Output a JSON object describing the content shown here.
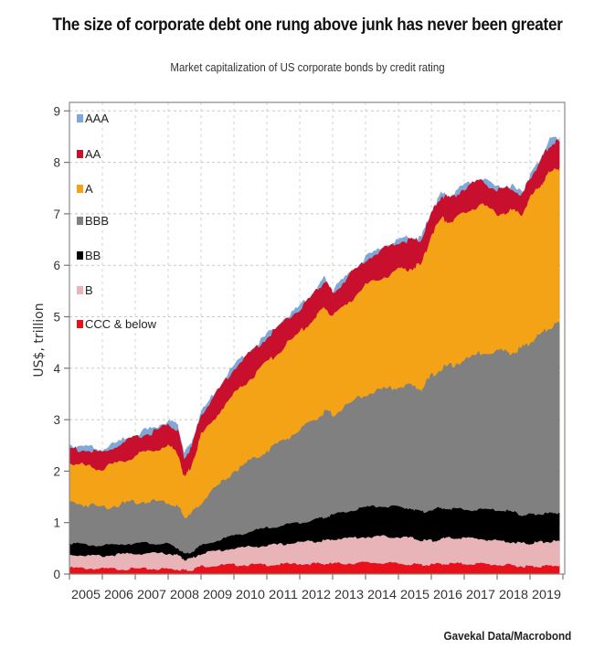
{
  "title": "The size of corporate debt one rung above junk has never been greater",
  "subtitle": "Market capitalization of US corporate bonds by credit rating",
  "source": "Gavekal Data/Macrobond",
  "chart_data": {
    "type": "area",
    "stacked": true,
    "title": "The size of corporate debt one rung above junk has never been greater",
    "subtitle": "Market capitalization of US corporate bonds by credit rating",
    "xlabel": "",
    "ylabel": "US$, trillion",
    "xlim": [
      2005,
      2020
    ],
    "ylim": [
      0,
      9
    ],
    "yticks": [
      0,
      1,
      2,
      3,
      4,
      5,
      6,
      7,
      8,
      9
    ],
    "xtick_labels": [
      "2005",
      "2006",
      "2007",
      "2008",
      "2009",
      "2010",
      "2011",
      "2012",
      "2013",
      "2014",
      "2015",
      "2016",
      "2017",
      "2018",
      "2019"
    ],
    "grid": true,
    "legend_position": "top-left",
    "x": [
      2005.0,
      2005.5,
      2006.0,
      2006.5,
      2007.0,
      2007.5,
      2008.0,
      2008.3,
      2008.5,
      2008.7,
      2009.0,
      2009.5,
      2010.0,
      2010.5,
      2011.0,
      2011.5,
      2012.0,
      2012.5,
      2012.75,
      2013.0,
      2013.5,
      2014.0,
      2014.5,
      2015.0,
      2015.4,
      2015.7,
      2016.0,
      2016.3,
      2016.6,
      2017.0,
      2017.5,
      2018.0,
      2018.4,
      2018.75,
      2019.0,
      2019.3,
      2019.6,
      2019.9
    ],
    "cumulative_tops": true,
    "series": [
      {
        "name": "CCC & below",
        "color": "#e8101a",
        "values": [
          0.12,
          0.11,
          0.1,
          0.1,
          0.1,
          0.1,
          0.1,
          0.09,
          0.08,
          0.08,
          0.15,
          0.17,
          0.18,
          0.18,
          0.18,
          0.19,
          0.2,
          0.2,
          0.2,
          0.2,
          0.21,
          0.22,
          0.22,
          0.2,
          0.19,
          0.18,
          0.18,
          0.2,
          0.2,
          0.2,
          0.2,
          0.18,
          0.17,
          0.15,
          0.15,
          0.15,
          0.16,
          0.17
        ]
      },
      {
        "name": "B",
        "color": "#e8b4b8",
        "values": [
          0.38,
          0.36,
          0.35,
          0.38,
          0.4,
          0.4,
          0.4,
          0.36,
          0.28,
          0.3,
          0.4,
          0.45,
          0.5,
          0.53,
          0.55,
          0.58,
          0.62,
          0.64,
          0.65,
          0.68,
          0.7,
          0.72,
          0.73,
          0.72,
          0.7,
          0.65,
          0.65,
          0.68,
          0.7,
          0.7,
          0.68,
          0.65,
          0.63,
          0.6,
          0.6,
          0.62,
          0.63,
          0.64
        ]
      },
      {
        "name": "BB",
        "color": "#000000",
        "values": [
          0.6,
          0.57,
          0.55,
          0.58,
          0.6,
          0.6,
          0.58,
          0.5,
          0.38,
          0.42,
          0.55,
          0.65,
          0.75,
          0.82,
          0.9,
          0.95,
          1.0,
          1.07,
          1.1,
          1.15,
          1.22,
          1.3,
          1.32,
          1.3,
          1.28,
          1.2,
          1.25,
          1.28,
          1.27,
          1.25,
          1.25,
          1.25,
          1.22,
          1.15,
          1.15,
          1.17,
          1.18,
          1.19
        ]
      },
      {
        "name": "BBB",
        "color": "#808080",
        "values": [
          1.4,
          1.35,
          1.3,
          1.35,
          1.4,
          1.42,
          1.4,
          1.3,
          1.1,
          1.15,
          1.4,
          1.7,
          2.0,
          2.2,
          2.4,
          2.6,
          2.8,
          3.0,
          3.15,
          3.1,
          3.3,
          3.5,
          3.58,
          3.65,
          3.65,
          3.6,
          3.85,
          4.0,
          4.05,
          4.15,
          4.3,
          4.35,
          4.3,
          4.4,
          4.5,
          4.65,
          4.8,
          4.88
        ]
      },
      {
        "name": "A",
        "color": "#f5a316",
        "values": [
          2.15,
          2.1,
          2.05,
          2.15,
          2.3,
          2.4,
          2.5,
          2.35,
          1.85,
          2.1,
          2.7,
          3.1,
          3.5,
          3.8,
          4.1,
          4.4,
          4.7,
          5.0,
          5.2,
          5.0,
          5.3,
          5.6,
          5.75,
          5.9,
          5.95,
          6.0,
          6.6,
          6.9,
          6.85,
          7.0,
          7.2,
          7.0,
          7.05,
          7.0,
          7.3,
          7.55,
          7.8,
          7.9
        ]
      },
      {
        "name": "AA",
        "color": "#c8102e",
        "values": [
          2.45,
          2.4,
          2.35,
          2.5,
          2.65,
          2.75,
          2.9,
          2.8,
          2.25,
          2.45,
          3.1,
          3.55,
          4.0,
          4.3,
          4.6,
          4.9,
          5.15,
          5.5,
          5.7,
          5.45,
          5.8,
          6.1,
          6.3,
          6.45,
          6.5,
          6.5,
          7.0,
          7.35,
          7.3,
          7.5,
          7.65,
          7.45,
          7.5,
          7.35,
          7.7,
          8.0,
          8.35,
          8.4
        ]
      },
      {
        "name": "AAA",
        "color": "#7fa8d6",
        "values": [
          2.52,
          2.47,
          2.42,
          2.57,
          2.72,
          2.82,
          2.98,
          2.88,
          2.35,
          2.55,
          3.15,
          3.6,
          4.05,
          4.35,
          4.65,
          4.95,
          5.2,
          5.55,
          5.75,
          5.5,
          5.85,
          6.15,
          6.35,
          6.5,
          6.55,
          6.55,
          7.05,
          7.4,
          7.36,
          7.55,
          7.7,
          7.5,
          7.56,
          7.4,
          7.75,
          8.06,
          8.45,
          8.5
        ]
      }
    ],
    "legend": [
      "AAA",
      "AA",
      "A",
      "BBB",
      "BB",
      "B",
      "CCC & below"
    ]
  }
}
